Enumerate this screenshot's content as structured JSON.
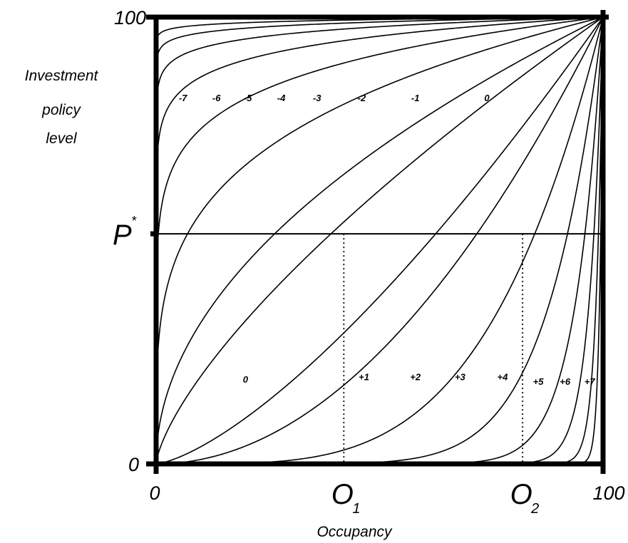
{
  "chart_data": {
    "type": "line",
    "title": "",
    "xlabel": "Occupancy",
    "ylabel_lines": [
      "Investment",
      "policy",
      "level"
    ],
    "xlim": [
      0,
      100
    ],
    "ylim": [
      0,
      100
    ],
    "x_tick_labels": [
      "0",
      "100"
    ],
    "y_tick_labels": [
      "0",
      "100"
    ],
    "x_markers": [
      {
        "label_main": "O",
        "label_sub": "1",
        "x": 42
      },
      {
        "label_main": "O",
        "label_sub": "2",
        "x": 82
      }
    ],
    "y_marker": {
      "label_main": "P",
      "label_sup": "*",
      "y": 51.5
    },
    "grid": false,
    "legend": "none",
    "curve_family": "y = 100 * (x/100)^(2^k)",
    "series": [
      {
        "label": "-7",
        "k": -7
      },
      {
        "label": "-6",
        "k": -6
      },
      {
        "label": "-5",
        "k": -5
      },
      {
        "label": "-4",
        "k": -4
      },
      {
        "label": "-3",
        "k": -3
      },
      {
        "label": "-2",
        "k": -2
      },
      {
        "label": "-1",
        "k": -1
      },
      {
        "label": "0",
        "k": -0.5
      },
      {
        "label": "0",
        "k": 0.5
      },
      {
        "label": "+1",
        "k": 1
      },
      {
        "label": "+2",
        "k": 2
      },
      {
        "label": "+3",
        "k": 3
      },
      {
        "label": "+4",
        "k": 4
      },
      {
        "label": "+5",
        "k": 5
      },
      {
        "label": "+6",
        "k": 6
      },
      {
        "label": "+7",
        "k": 7
      }
    ],
    "upper_labels": [
      {
        "text": "-7",
        "x": 6,
        "y": 82
      },
      {
        "text": "-6",
        "x": 13.5,
        "y": 82
      },
      {
        "text": "-5",
        "x": 20.5,
        "y": 82
      },
      {
        "text": "-4",
        "x": 28,
        "y": 82
      },
      {
        "text": "-3",
        "x": 36,
        "y": 82
      },
      {
        "text": "-2",
        "x": 46,
        "y": 82
      },
      {
        "text": "-1",
        "x": 58,
        "y": 82
      },
      {
        "text": "0",
        "x": 74,
        "y": 82
      }
    ],
    "lower_labels": [
      {
        "text": "0",
        "x": 20,
        "y": 19
      },
      {
        "text": "+1",
        "x": 46.5,
        "y": 19.5
      },
      {
        "text": "+2",
        "x": 58,
        "y": 19.5
      },
      {
        "text": "+3",
        "x": 68,
        "y": 19.5
      },
      {
        "text": "+4",
        "x": 77.5,
        "y": 19.5
      },
      {
        "text": "+5",
        "x": 85.5,
        "y": 18.5
      },
      {
        "text": "+6",
        "x": 91.5,
        "y": 18.5
      },
      {
        "text": "+7",
        "x": 97,
        "y": 18.5
      }
    ]
  }
}
